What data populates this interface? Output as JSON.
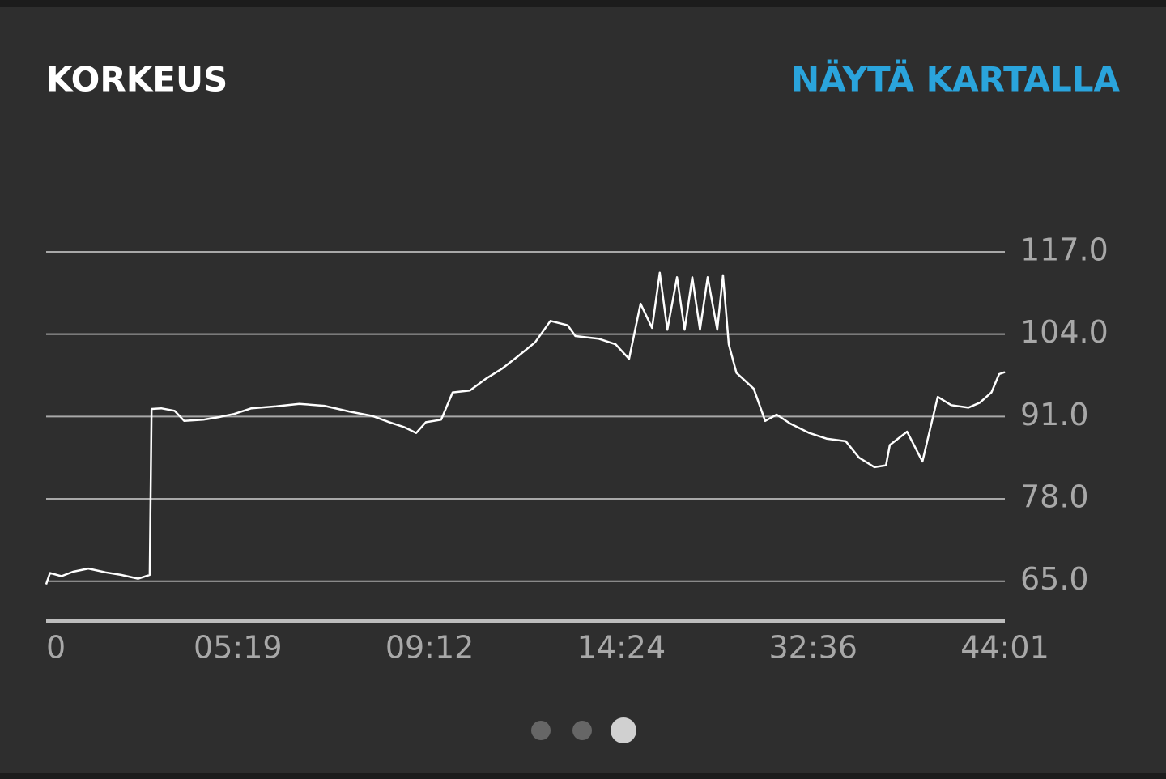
{
  "header": {
    "title": "KORKEUS",
    "link": "NÄYTÄ KARTALLA"
  },
  "chart_data": {
    "type": "line",
    "color": "#ffffff",
    "x": [
      0,
      0.02,
      0.08,
      0.14,
      0.22,
      0.31,
      0.39,
      0.48,
      0.54,
      0.55,
      0.6,
      0.67,
      0.72,
      0.82,
      0.9,
      0.98,
      1.07,
      1.2,
      1.32,
      1.45,
      1.58,
      1.7,
      1.79,
      1.87,
      1.93,
      1.98,
      2.06,
      2.12,
      2.21,
      2.29,
      2.38,
      2.46,
      2.55,
      2.63,
      2.72,
      2.76,
      2.88,
      2.97,
      3.04,
      3.1,
      3.16,
      3.2,
      3.24,
      3.29,
      3.33,
      3.37,
      3.41,
      3.45,
      3.5,
      3.53,
      3.56,
      3.6,
      3.69,
      3.75,
      3.81,
      3.88,
      3.98,
      4.07,
      4.17,
      4.24,
      4.32,
      4.38,
      4.4,
      4.49,
      4.57,
      4.65,
      4.72,
      4.81,
      4.87,
      4.93,
      4.97,
      5
    ],
    "values": [
      64.5,
      66.3,
      65.8,
      66.5,
      67.0,
      66.4,
      66.0,
      65.4,
      66.0,
      92.2,
      92.3,
      91.9,
      90.3,
      90.5,
      90.9,
      91.4,
      92.3,
      92.6,
      93.0,
      92.7,
      91.8,
      91.1,
      90.1,
      89.3,
      88.4,
      90.1,
      90.5,
      94.8,
      95.1,
      96.9,
      98.6,
      100.5,
      102.7,
      106.1,
      105.4,
      103.7,
      103.3,
      102.4,
      100.1,
      108.8,
      105.0,
      113.7,
      104.7,
      113.0,
      104.7,
      113.0,
      104.7,
      113.0,
      104.7,
      113.3,
      102.4,
      97.9,
      95.4,
      90.3,
      91.3,
      89.9,
      88.4,
      87.5,
      87.1,
      84.5,
      83.0,
      83.3,
      86.5,
      88.6,
      83.9,
      94.1,
      92.8,
      92.4,
      93.2,
      94.8,
      97.7,
      98.0
    ],
    "xlim": [
      0,
      5
    ],
    "xticks": [
      {
        "value": 0,
        "label": "0"
      },
      {
        "value": 1,
        "label": "05:19"
      },
      {
        "value": 2,
        "label": "09:12"
      },
      {
        "value": 3,
        "label": "14:24"
      },
      {
        "value": 4,
        "label": "32:36"
      },
      {
        "value": 5,
        "label": "44:01"
      }
    ],
    "ylim": [
      58.7,
      117
    ],
    "yticks": [
      {
        "value": 117,
        "label": "117.0"
      },
      {
        "value": 104,
        "label": "104.0"
      },
      {
        "value": 91,
        "label": "91.0"
      },
      {
        "value": 78,
        "label": "78.0"
      },
      {
        "value": 65,
        "label": "65.0"
      }
    ],
    "grid": true
  }
}
